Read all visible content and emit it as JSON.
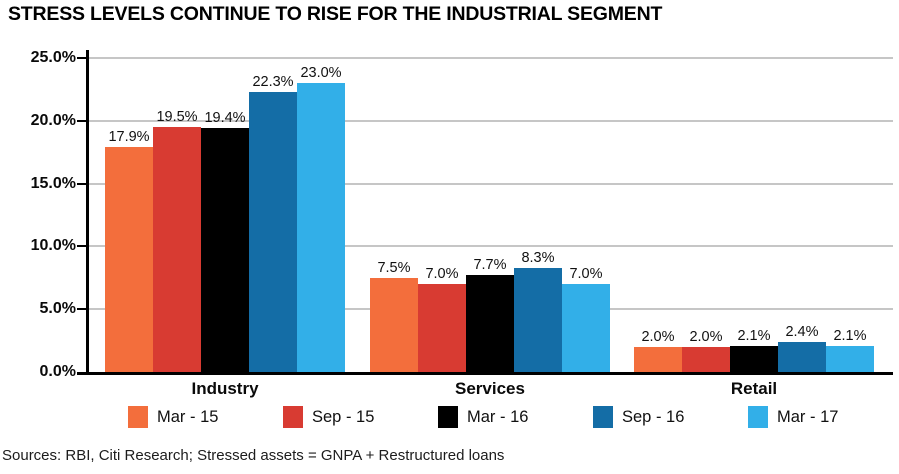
{
  "title": "STRESS LEVELS CONTINUE TO RISE FOR THE INDUSTRIAL SEGMENT",
  "source_note": "Sources: RBI, Citi Research; Stressed assets = GNPA + Restructured loans",
  "colors": {
    "mar15": "#F36E3C",
    "sep15": "#D83B32",
    "mar16": "#000000",
    "sep16": "#146DA6",
    "mar17": "#32AFE8",
    "gridline": "#C6C6C6",
    "axis": "#000000"
  },
  "chart_data": {
    "type": "bar",
    "title": "STRESS LEVELS CONTINUE TO RISE FOR THE INDUSTRIAL SEGMENT",
    "categories": [
      "Industry",
      "Services",
      "Retail"
    ],
    "series": [
      {
        "name": "Mar - 15",
        "color": "#F36E3C",
        "values": [
          17.9,
          7.5,
          2.0
        ]
      },
      {
        "name": "Sep - 15",
        "color": "#D83B32",
        "values": [
          19.5,
          7.0,
          2.0
        ]
      },
      {
        "name": "Mar - 16",
        "color": "#000000",
        "values": [
          19.4,
          7.7,
          2.1
        ]
      },
      {
        "name": "Sep - 16",
        "color": "#146DA6",
        "values": [
          22.3,
          8.3,
          2.4
        ]
      },
      {
        "name": "Mar - 17",
        "color": "#32AFE8",
        "values": [
          23.0,
          7.0,
          2.1
        ]
      }
    ],
    "value_label_suffix": "%",
    "value_label_decimals": 1,
    "xlabel": "",
    "ylabel": "",
    "ylim": [
      0,
      25
    ],
    "ytick_step": 5,
    "ytick_labels": [
      "0.0%",
      "5.0%",
      "10.0%",
      "15.0%",
      "20.0%",
      "25.0%"
    ],
    "grid": true,
    "legend_position": "bottom"
  }
}
